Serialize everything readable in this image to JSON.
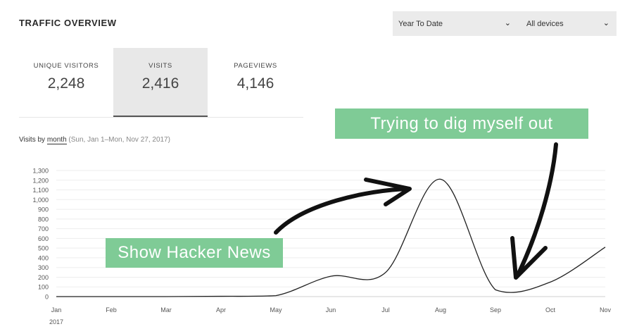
{
  "header": {
    "title": "TRAFFIC OVERVIEW"
  },
  "filters": {
    "range": "Year To Date",
    "device": "All devices"
  },
  "stats": [
    {
      "label": "UNIQUE VISITORS",
      "value": "2,248"
    },
    {
      "label": "VISITS",
      "value": "2,416"
    },
    {
      "label": "PAGEVIEWS",
      "value": "4,146"
    }
  ],
  "subtitle": {
    "prefix": "Visits by",
    "unit": "month",
    "range": "(Sun, Jan 1–Mon, Nov 27, 2017)"
  },
  "annotations": {
    "top": "Trying to dig myself out",
    "bottom": "Show Hacker News"
  },
  "colors": {
    "callout": "#7fcb96",
    "line": "#222222",
    "grid": "#ededed"
  },
  "chart_data": {
    "type": "line",
    "categories": [
      "Jan",
      "Feb",
      "Mar",
      "Apr",
      "May",
      "Jun",
      "Jul",
      "Aug",
      "Sep",
      "Oct",
      "Nov"
    ],
    "year_label": "2017",
    "values": [
      0,
      0,
      0,
      3,
      10,
      210,
      250,
      1210,
      70,
      150,
      510
    ],
    "ylim": [
      0,
      1300
    ],
    "yticks": [
      "0",
      "100",
      "200",
      "300",
      "400",
      "500",
      "600",
      "700",
      "800",
      "900",
      "1,000",
      "1,100",
      "1,200",
      "1,300"
    ],
    "grid": true
  }
}
